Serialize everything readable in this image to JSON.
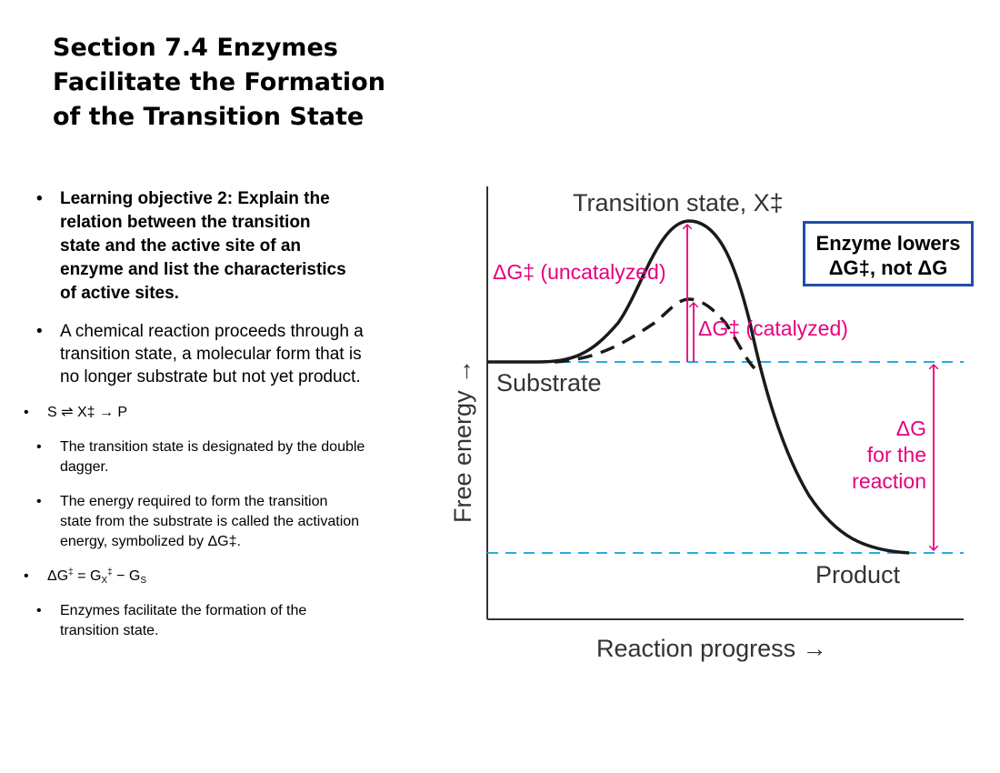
{
  "slide": {
    "title_lines": [
      "Section 7.4 Enzymes",
      "Facilitate the Formation",
      "of the Transition State"
    ]
  },
  "bullets": {
    "learning_objective": [
      "Learning objective 2: Explain the",
      "relation between the transition",
      "state and the active site of an",
      "enzyme and list the characteristics",
      "of active sites."
    ],
    "reaction_text": [
      "A chemical reaction proceeds through a",
      "transition state, a molecular form that is",
      "no longer substrate but not yet product."
    ],
    "equation": "S ⇌ X‡ → P",
    "dagger_text": [
      "The transition state is designated by the double",
      "dagger."
    ],
    "energy_text": [
      "The energy required to form the transition",
      "state from the substrate is called the activation",
      "energy, symbolized by ΔG‡."
    ],
    "activation_eq": {
      "prefix": "ΔG",
      "dagger": "‡",
      "eq": " = G",
      "x_sub": "X",
      "minus": " − G",
      "s_sub": "S"
    },
    "enzyme_text": [
      "Enzymes facilitate the formation of the",
      "transition state."
    ]
  },
  "diagram": {
    "transition_state_label": "Transition state, X‡",
    "uncatalyzed_label": "ΔG‡ (uncatalyzed)",
    "catalyzed_label": "ΔG‡ (catalyzed)",
    "substrate_label": "Substrate",
    "product_label": "Product",
    "dg_label_lines": [
      "ΔG",
      "for the",
      "reaction"
    ],
    "y_axis_label": "Free energy →",
    "x_axis_label": "Reaction progress →",
    "colors": {
      "arrow_magenta": "#e6007e",
      "dashed_level": "#29abe2",
      "curve": "#1a1a1a",
      "text_gray": "#333333"
    }
  },
  "callout": {
    "lines": [
      "Enzyme lowers",
      "ΔG‡, not ΔG"
    ]
  }
}
